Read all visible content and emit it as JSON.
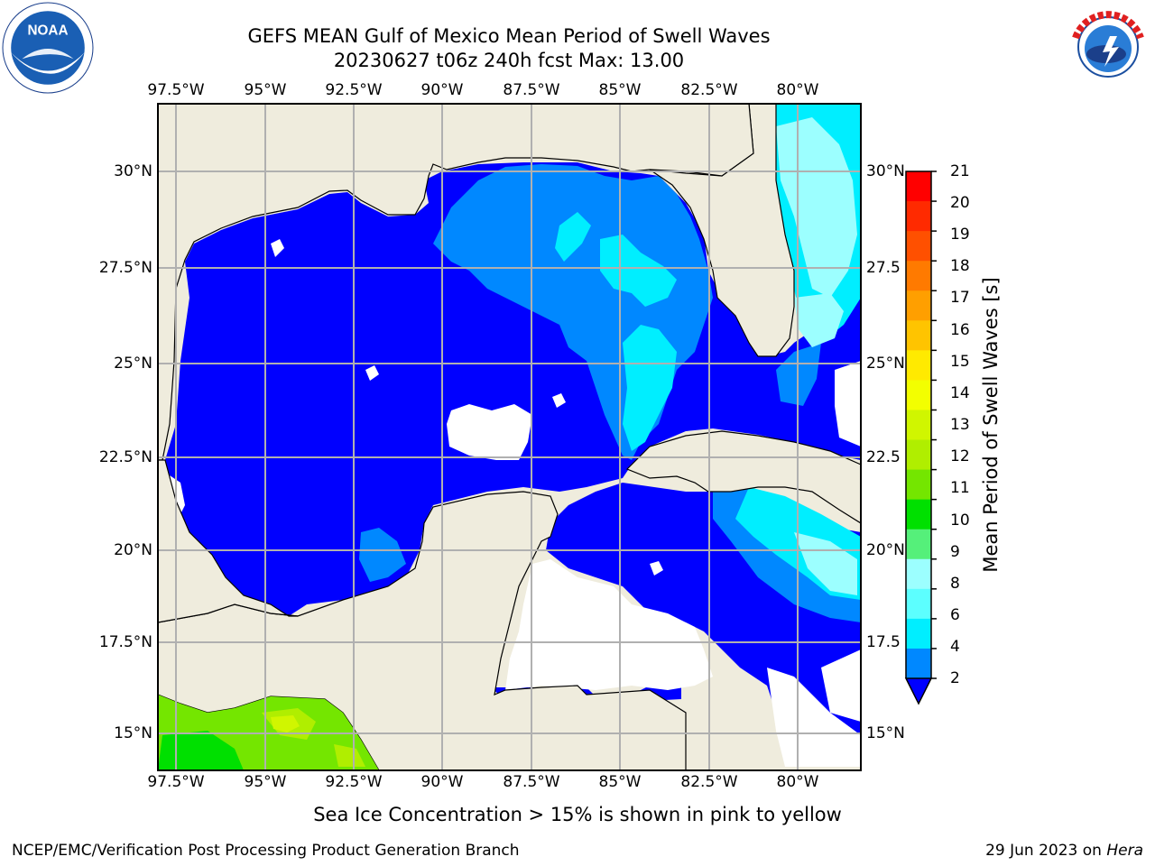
{
  "title": {
    "line1": "GEFS MEAN Gulf of Mexico Mean Period of Swell Waves",
    "line2": "20230627 t06z 240h fcst   Max: 13.00"
  },
  "logos": {
    "left": "noaa-logo",
    "right": "national-weather-service-logo",
    "left_text": "NOAA",
    "right_text": "NATIONAL WEATHER SERVICE"
  },
  "map": {
    "lon_labels": [
      "97.5°W",
      "95°W",
      "92.5°W",
      "90°W",
      "87.5°W",
      "85°W",
      "82.5°W",
      "80°W"
    ],
    "lat_labels_left": [
      "30°N",
      "27.5°N",
      "25°N",
      "22.5°N",
      "20°N",
      "17.5°N",
      "15°N"
    ],
    "lat_labels_right": [
      "30°N",
      "27.5",
      "25°N",
      "22.5",
      "20°N",
      "17.5",
      "15°N"
    ],
    "land_color": "#efecdd",
    "extent": {
      "lon": [
        -98,
        -78.2
      ],
      "lat": [
        14,
        31.8
      ]
    },
    "gridlines": true
  },
  "colorbar": {
    "label": "Mean Period of Swell Waves [s]",
    "ticks": [
      "21",
      "20",
      "19",
      "18",
      "17",
      "16",
      "15",
      "14",
      "13",
      "12",
      "11",
      "10",
      "9",
      "8",
      "6",
      "4",
      "2"
    ],
    "colors": [
      "#ff0000",
      "#ff2a00",
      "#ff5000",
      "#ff7a00",
      "#ff9f00",
      "#ffc400",
      "#ffea00",
      "#f3ff00",
      "#d0f600",
      "#b0ee00",
      "#74e600",
      "#00e000",
      "#55f07a",
      "#9cffff",
      "#5cffff",
      "#00eeff",
      "#0088ff",
      "#0000ff"
    ]
  },
  "notes": {
    "ice": "Sea Ice Concentration > 15% is shown in pink to yellow",
    "footer_left": "NCEP/EMC/Verification Post Processing Product Generation Branch",
    "footer_date": "29 Jun 2023 on",
    "footer_machine": "Hera"
  }
}
